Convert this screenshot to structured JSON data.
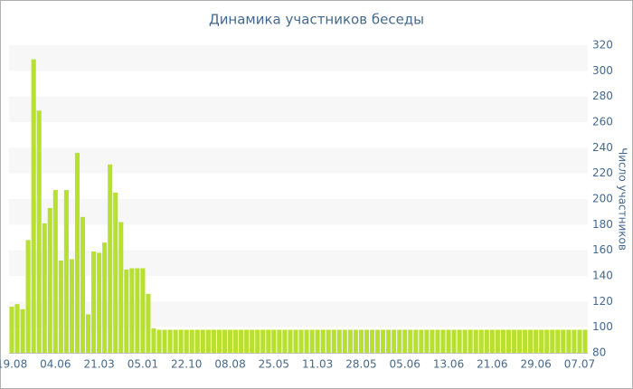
{
  "chart_data": {
    "type": "bar",
    "title": "Динамика участников беседы",
    "y_label": "Число участников",
    "categories": [
      "19.08",
      null,
      null,
      null,
      null,
      null,
      null,
      null,
      "04.06",
      null,
      null,
      null,
      null,
      null,
      null,
      null,
      "21.03",
      null,
      null,
      null,
      null,
      null,
      null,
      null,
      "05.01",
      null,
      null,
      null,
      null,
      null,
      null,
      null,
      "22.10",
      null,
      null,
      null,
      null,
      null,
      null,
      null,
      "08.08",
      null,
      null,
      null,
      null,
      null,
      null,
      null,
      "25.05",
      null,
      null,
      null,
      null,
      null,
      null,
      null,
      "11.03",
      null,
      null,
      null,
      null,
      null,
      null,
      null,
      "28.05",
      null,
      null,
      null,
      null,
      null,
      null,
      null,
      "05.06",
      null,
      null,
      null,
      null,
      null,
      null,
      null,
      "13.06",
      null,
      null,
      null,
      null,
      null,
      null,
      null,
      "21.06",
      null,
      null,
      null,
      null,
      null,
      null,
      null,
      "29.06",
      null,
      null,
      null,
      null,
      null,
      null,
      null,
      "07.07",
      null
    ],
    "values": [
      116,
      118,
      114,
      168,
      309,
      269,
      181,
      193,
      207,
      152,
      207,
      153,
      236,
      186,
      110,
      159,
      158,
      166,
      227,
      205,
      182,
      145,
      146,
      146,
      146,
      126,
      99,
      98,
      98,
      98,
      98,
      98,
      98,
      98,
      98,
      98,
      98,
      98,
      98,
      98,
      98,
      98,
      98,
      98,
      98,
      98,
      98,
      98,
      98,
      98,
      98,
      98,
      98,
      98,
      98,
      98,
      98,
      98,
      98,
      98,
      98,
      98,
      98,
      98,
      98,
      98,
      98,
      98,
      98,
      98,
      98,
      98,
      98,
      98,
      98,
      98,
      98,
      98,
      98,
      98,
      98,
      98,
      98,
      98,
      98,
      98,
      98,
      98,
      98,
      98,
      98,
      98,
      98,
      98,
      98,
      98,
      98,
      98,
      98,
      98,
      98,
      98,
      98,
      98,
      98,
      98
    ],
    "color": "#b8e030",
    "ylim": [
      80,
      320
    ],
    "yticks": [
      80,
      100,
      120,
      140,
      160,
      180,
      200,
      220,
      240,
      260,
      280,
      300,
      320
    ],
    "grid": true
  }
}
